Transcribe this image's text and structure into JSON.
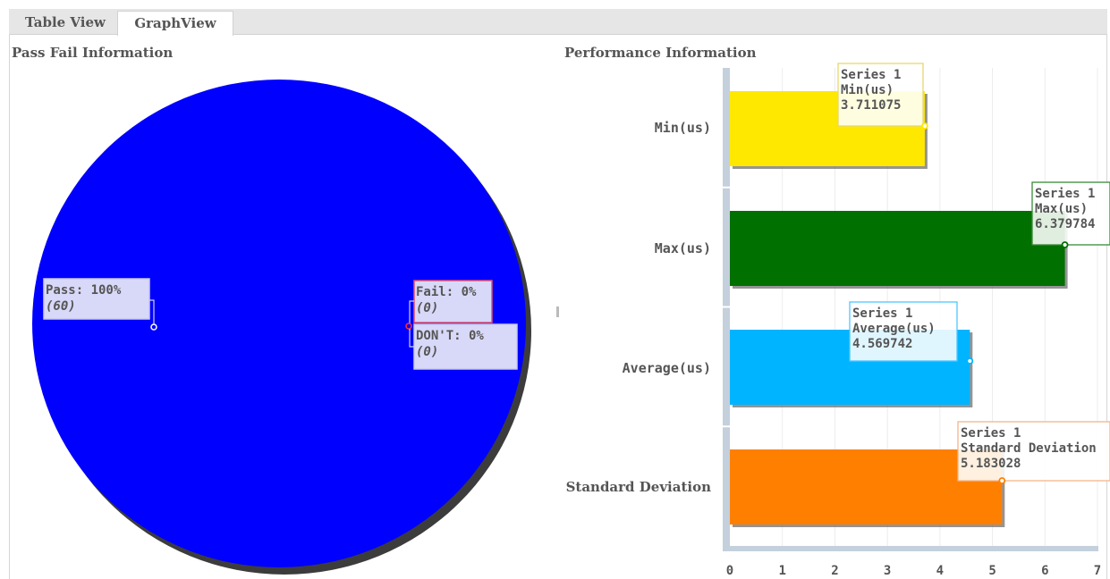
{
  "tabs": [
    {
      "label": "Table View"
    },
    {
      "label": "GraphView"
    }
  ],
  "left_panel": {
    "title": "Pass Fail Information"
  },
  "right_panel": {
    "title": "Performance Information"
  },
  "chart_data": [
    {
      "type": "pie",
      "title": "Pass Fail Information",
      "slices": [
        {
          "name": "Pass",
          "percent": 100,
          "count": 60,
          "color": "#0000ff",
          "label": "Pass: 100%",
          "sub": "(60)"
        },
        {
          "name": "Fail",
          "percent": 0,
          "count": 0,
          "color": "#d0d0f0",
          "label": "Fail: 0%",
          "sub": "(0)"
        },
        {
          "name": "DON'T",
          "percent": 0,
          "count": 0,
          "color": "#d0d0f0",
          "label": "DON'T: 0%",
          "sub": "(0)"
        }
      ]
    },
    {
      "type": "bar",
      "orientation": "horizontal",
      "title": "Performance Information",
      "categories": [
        "Min(us)",
        "Max(us)",
        "Average(us)",
        "Standard Deviation"
      ],
      "series": [
        {
          "name": "Series 1",
          "values": [
            3.711075,
            6.379784,
            4.569742,
            5.183028
          ]
        }
      ],
      "value_labels": [
        "3.711075",
        "6.379784",
        "4.569742",
        "5.183028"
      ],
      "colors": [
        "#ffe800",
        "#007000",
        "#00b4ff",
        "#ff8000"
      ],
      "tooltip_border_colors": [
        "#e6d86a",
        "#3a8a3a",
        "#4ec6ff",
        "#f3b58a"
      ],
      "xlim": [
        0,
        7
      ],
      "xticks": [
        "0",
        "1",
        "2",
        "3",
        "4",
        "5",
        "6",
        "7"
      ],
      "grid": true
    }
  ]
}
